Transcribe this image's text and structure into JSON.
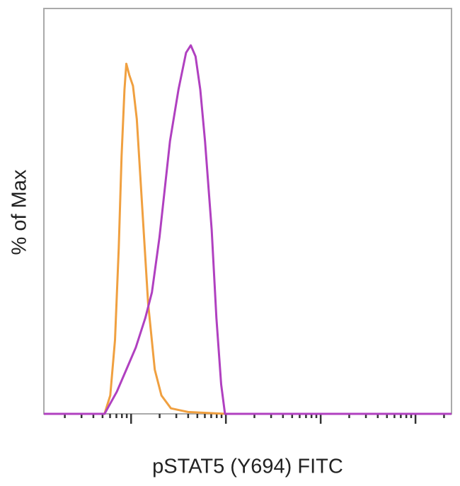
{
  "chart_data": {
    "type": "line",
    "title": "",
    "xlabel": "pSTAT5 (Y694) FITC",
    "ylabel": "% of Max",
    "x_scale": "log",
    "xlim": [
      1.08,
      5.38
    ],
    "ylim": [
      0,
      110
    ],
    "major_ticks_log10": [
      2,
      3,
      4,
      5
    ],
    "grid": false,
    "legend": "none",
    "series": [
      {
        "color": "#f0a040",
        "points": [
          [
            1.08,
            0
          ],
          [
            1.72,
            0
          ],
          [
            1.78,
            5
          ],
          [
            1.83,
            20
          ],
          [
            1.87,
            45
          ],
          [
            1.9,
            70
          ],
          [
            1.93,
            88
          ],
          [
            1.95,
            95
          ],
          [
            1.98,
            92
          ],
          [
            2.02,
            89
          ],
          [
            2.06,
            80
          ],
          [
            2.12,
            55
          ],
          [
            2.18,
            30
          ],
          [
            2.25,
            12
          ],
          [
            2.32,
            5
          ],
          [
            2.42,
            1.5
          ],
          [
            2.6,
            0.5
          ],
          [
            3.0,
            0
          ]
        ]
      },
      {
        "color": "#b040c0",
        "points": [
          [
            1.08,
            0
          ],
          [
            1.72,
            0
          ],
          [
            1.85,
            6
          ],
          [
            1.95,
            12
          ],
          [
            2.05,
            18
          ],
          [
            2.15,
            26
          ],
          [
            2.22,
            33
          ],
          [
            2.3,
            48
          ],
          [
            2.41,
            74
          ],
          [
            2.5,
            88
          ],
          [
            2.58,
            98
          ],
          [
            2.63,
            100
          ],
          [
            2.68,
            97
          ],
          [
            2.73,
            88
          ],
          [
            2.78,
            74
          ],
          [
            2.85,
            50
          ],
          [
            2.9,
            26
          ],
          [
            2.95,
            8
          ],
          [
            2.99,
            0
          ],
          [
            5.38,
            0
          ]
        ]
      }
    ]
  }
}
